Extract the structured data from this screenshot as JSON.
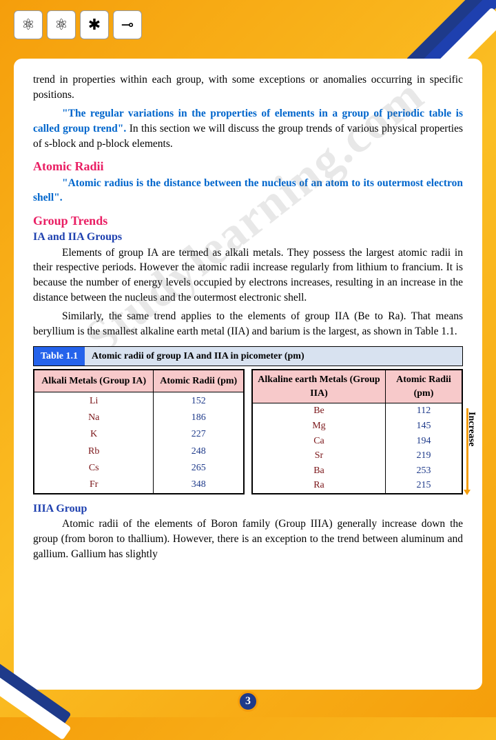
{
  "watermark": "Studylearning.com",
  "intro": {
    "p1": "trend in properties within each group, with some exceptions or anomalies occurring in specific positions.",
    "quote1": "\"The regular variations in the properties of elements in a group of periodic table is called group trend\".",
    "p1b": " In this section we will discuss the group trends of various physical properties of s-block and p-block elements."
  },
  "atomic": {
    "head": "Atomic Radii",
    "quote": "\"Atomic radius is the distance between the nucleus of an atom to its outermost  electron shell\"."
  },
  "trends": {
    "head": "Group Trends",
    "sub1": "IA and IIA Groups",
    "p1": "Elements of group IA are termed as alkali metals. They possess the largest atomic radii in their respective periods. However the atomic radii increase regularly from lithium to francium. It is because the number of energy levels occupied by electrons increases, resulting in an increase in the distance between the nucleus and the outermost electronic shell.",
    "p2": "Similarly, the same trend applies to the elements of group IIA (Be to Ra). That means beryllium is the smallest alkaline earth metal (IIA) and barium is the largest, as shown in Table 1.1."
  },
  "table": {
    "badge": "Table 1.1",
    "caption": "Atomic radii of group IA and IIA in picometer (pm)",
    "left": {
      "h1": "Alkali Metals (Group IA)",
      "h2": "Atomic Radii (pm)",
      "rows": [
        [
          "Li",
          "152"
        ],
        [
          "Na",
          "186"
        ],
        [
          "K",
          "227"
        ],
        [
          "Rb",
          "248"
        ],
        [
          "Cs",
          "265"
        ],
        [
          "Fr",
          "348"
        ]
      ]
    },
    "right": {
      "h1": "Alkaline earth Metals (Group IIA)",
      "h2": "Atomic Radii (pm)",
      "rows": [
        [
          "Be",
          "112"
        ],
        [
          "Mg",
          "145"
        ],
        [
          "Ca",
          "194"
        ],
        [
          "Sr",
          "219"
        ],
        [
          "Ba",
          "253"
        ],
        [
          "Ra",
          "215"
        ]
      ]
    },
    "arrowLabel": "Increase"
  },
  "iiia": {
    "head": "IIIA Group",
    "p": "Atomic radii of the elements of Boron family (Group IIIA) generally increase down the group (from boron to thallium). However, there is an exception to the trend between aluminum and gallium. Gallium has slightly"
  },
  "pageNum": "3"
}
